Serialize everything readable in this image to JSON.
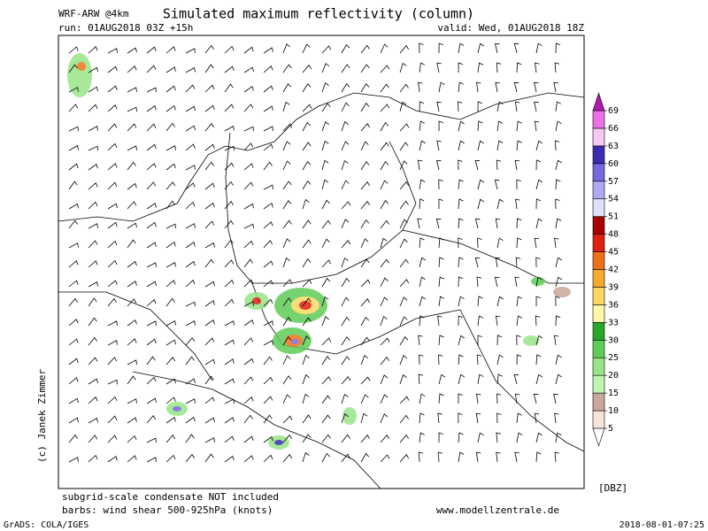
{
  "header": {
    "model": "WRF-ARW @4km",
    "title": "Simulated maximum reflectivity (column)",
    "run": "run: 01AUG2018 03Z +15h",
    "valid": "valid: Wed, 01AUG2018 18Z"
  },
  "credit": "(c) Janek Zimmer",
  "colorbar": {
    "unit": "[DBZ]",
    "levels": [
      5,
      10,
      15,
      20,
      25,
      30,
      33,
      36,
      39,
      42,
      45,
      48,
      51,
      54,
      57,
      60,
      63,
      66,
      69
    ],
    "colors": [
      "#ffffff",
      "#f4e4da",
      "#c8a898",
      "#c0f4b0",
      "#98e488",
      "#60cc58",
      "#28a828",
      "#fff8a8",
      "#fcd860",
      "#f8a830",
      "#f07018",
      "#e02010",
      "#a80000",
      "#e0e0fc",
      "#b0a8f4",
      "#7868e0",
      "#3c2cb0",
      "#f8c8f4",
      "#ec70e8",
      "#b018b0"
    ]
  },
  "footer": {
    "note1": "subgrid-scale condensate NOT included",
    "note2": "barbs: wind shear 500-925hPa (knots)",
    "site": "www.modellzentrale.de",
    "grads": "GrADS: COLA/IGES",
    "stamp": "2018-08-01-07:25"
  }
}
